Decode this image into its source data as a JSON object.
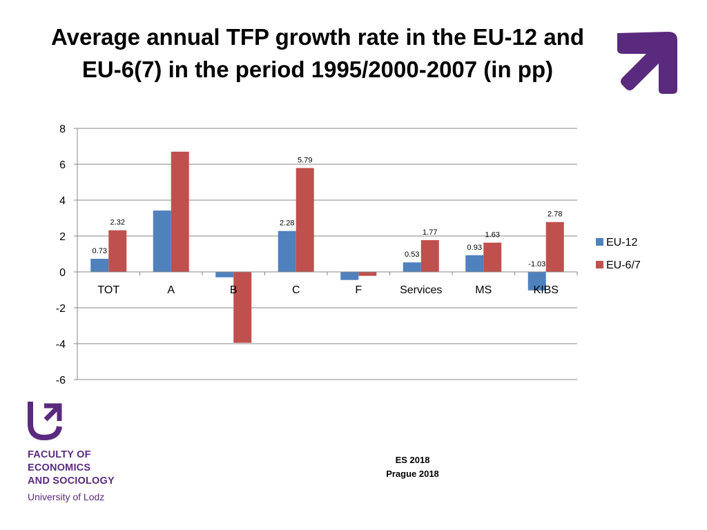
{
  "slide": {
    "title_line1": "Average annual TFP growth rate in the EU-12 and",
    "title_line2": "EU-6(7) in the period 1995/2000-2007 (in pp)"
  },
  "footer": {
    "faculty_lines": [
      "FACULTY OF",
      "ECONOMICS",
      "AND SOCIOLOGY"
    ],
    "university": "University of Lodz",
    "event": "ES 2018",
    "place": "Prague 2018"
  },
  "colors": {
    "eu12": "#4f81bd",
    "eu67": "#c0504d",
    "brand_purple": "#5a2a7e"
  },
  "icons": {
    "corner_logo": "arrow-up-right-icon",
    "footer_logo": "u-arrow-logo-icon"
  },
  "chart_data": {
    "type": "bar",
    "title": "",
    "categories": [
      "TOT",
      "A",
      "B",
      "C",
      "F",
      "Services",
      "MS",
      "KIBS"
    ],
    "series": [
      {
        "name": "EU-12",
        "values": [
          0.73,
          3.42,
          -0.3,
          2.28,
          -0.45,
          0.53,
          0.93,
          -1.03
        ],
        "labels": [
          "0.73",
          "",
          "",
          "2.28",
          "",
          "0.53",
          "0.93",
          "-1.03"
        ]
      },
      {
        "name": "EU-6/7",
        "values": [
          2.32,
          6.7,
          -3.95,
          5.79,
          -0.22,
          1.77,
          1.63,
          2.78
        ],
        "labels": [
          "2.32",
          "",
          "",
          "5.79",
          "",
          "1.77",
          "1.63",
          "2.78"
        ]
      }
    ],
    "xlabel": "",
    "ylabel": "",
    "ylim": [
      -6,
      8
    ],
    "yticks": [
      8,
      6,
      4,
      2,
      0,
      -2,
      -4,
      -6
    ],
    "grid": true,
    "legend": "right"
  }
}
